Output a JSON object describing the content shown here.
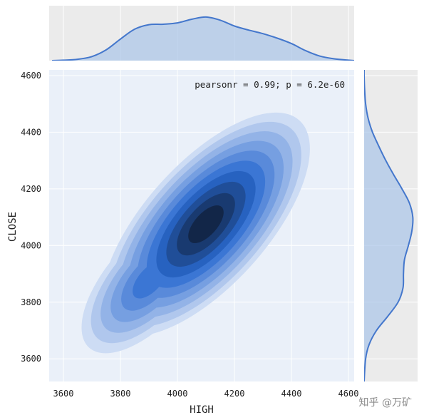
{
  "chart_data": {
    "type": "kde-jointplot",
    "xlabel": "HIGH",
    "ylabel": "CLOSE",
    "xlim": [
      3550,
      4620
    ],
    "ylim": [
      3520,
      4620
    ],
    "xticks": [
      3600,
      3800,
      4000,
      4200,
      4400,
      4600
    ],
    "yticks": [
      3600,
      3800,
      4000,
      4200,
      4400,
      4600
    ],
    "annotation": "pearsonr = 0.99; p = 6.2e-60",
    "grid": true,
    "joint_density": {
      "levels": 10,
      "peaks": [
        {
          "x": 4100,
          "y": 4075,
          "weight": 1.0
        },
        {
          "x": 3905,
          "y": 3880,
          "weight": 0.55
        },
        {
          "x": 4280,
          "y": 4260,
          "weight": 0.3
        }
      ]
    },
    "marginal_x": {
      "x": [
        3560,
        3600,
        3650,
        3700,
        3750,
        3800,
        3850,
        3900,
        3950,
        4000,
        4050,
        4100,
        4150,
        4200,
        4250,
        4300,
        4350,
        4400,
        4450,
        4500,
        4550,
        4600,
        4620
      ],
      "density": [
        0.0,
        0.01,
        0.03,
        0.09,
        0.24,
        0.48,
        0.7,
        0.8,
        0.81,
        0.84,
        0.92,
        0.97,
        0.9,
        0.77,
        0.68,
        0.6,
        0.5,
        0.38,
        0.22,
        0.1,
        0.04,
        0.01,
        0.0
      ]
    },
    "marginal_y": {
      "y": [
        3520,
        3600,
        3650,
        3700,
        3750,
        3800,
        3850,
        3900,
        3950,
        4000,
        4050,
        4100,
        4150,
        4200,
        4250,
        4300,
        4350,
        4400,
        4450,
        4500,
        4550,
        4600,
        4620
      ],
      "density": [
        0.0,
        0.03,
        0.1,
        0.25,
        0.48,
        0.69,
        0.79,
        0.8,
        0.82,
        0.9,
        0.97,
        0.99,
        0.92,
        0.77,
        0.6,
        0.44,
        0.3,
        0.17,
        0.08,
        0.03,
        0.01,
        0.0,
        0.0
      ]
    },
    "colors": {
      "line": "#4477cc",
      "fill": "#aac4e8",
      "joint_background": "#eaf0f9",
      "marginal_background": "#ebebeb",
      "grid": "#ffffff",
      "ramp_light": "#eaf0fa",
      "ramp_mid": "#2a6ad0",
      "ramp_dark": "#0b1220"
    }
  },
  "watermark": "知乎 @万矿"
}
